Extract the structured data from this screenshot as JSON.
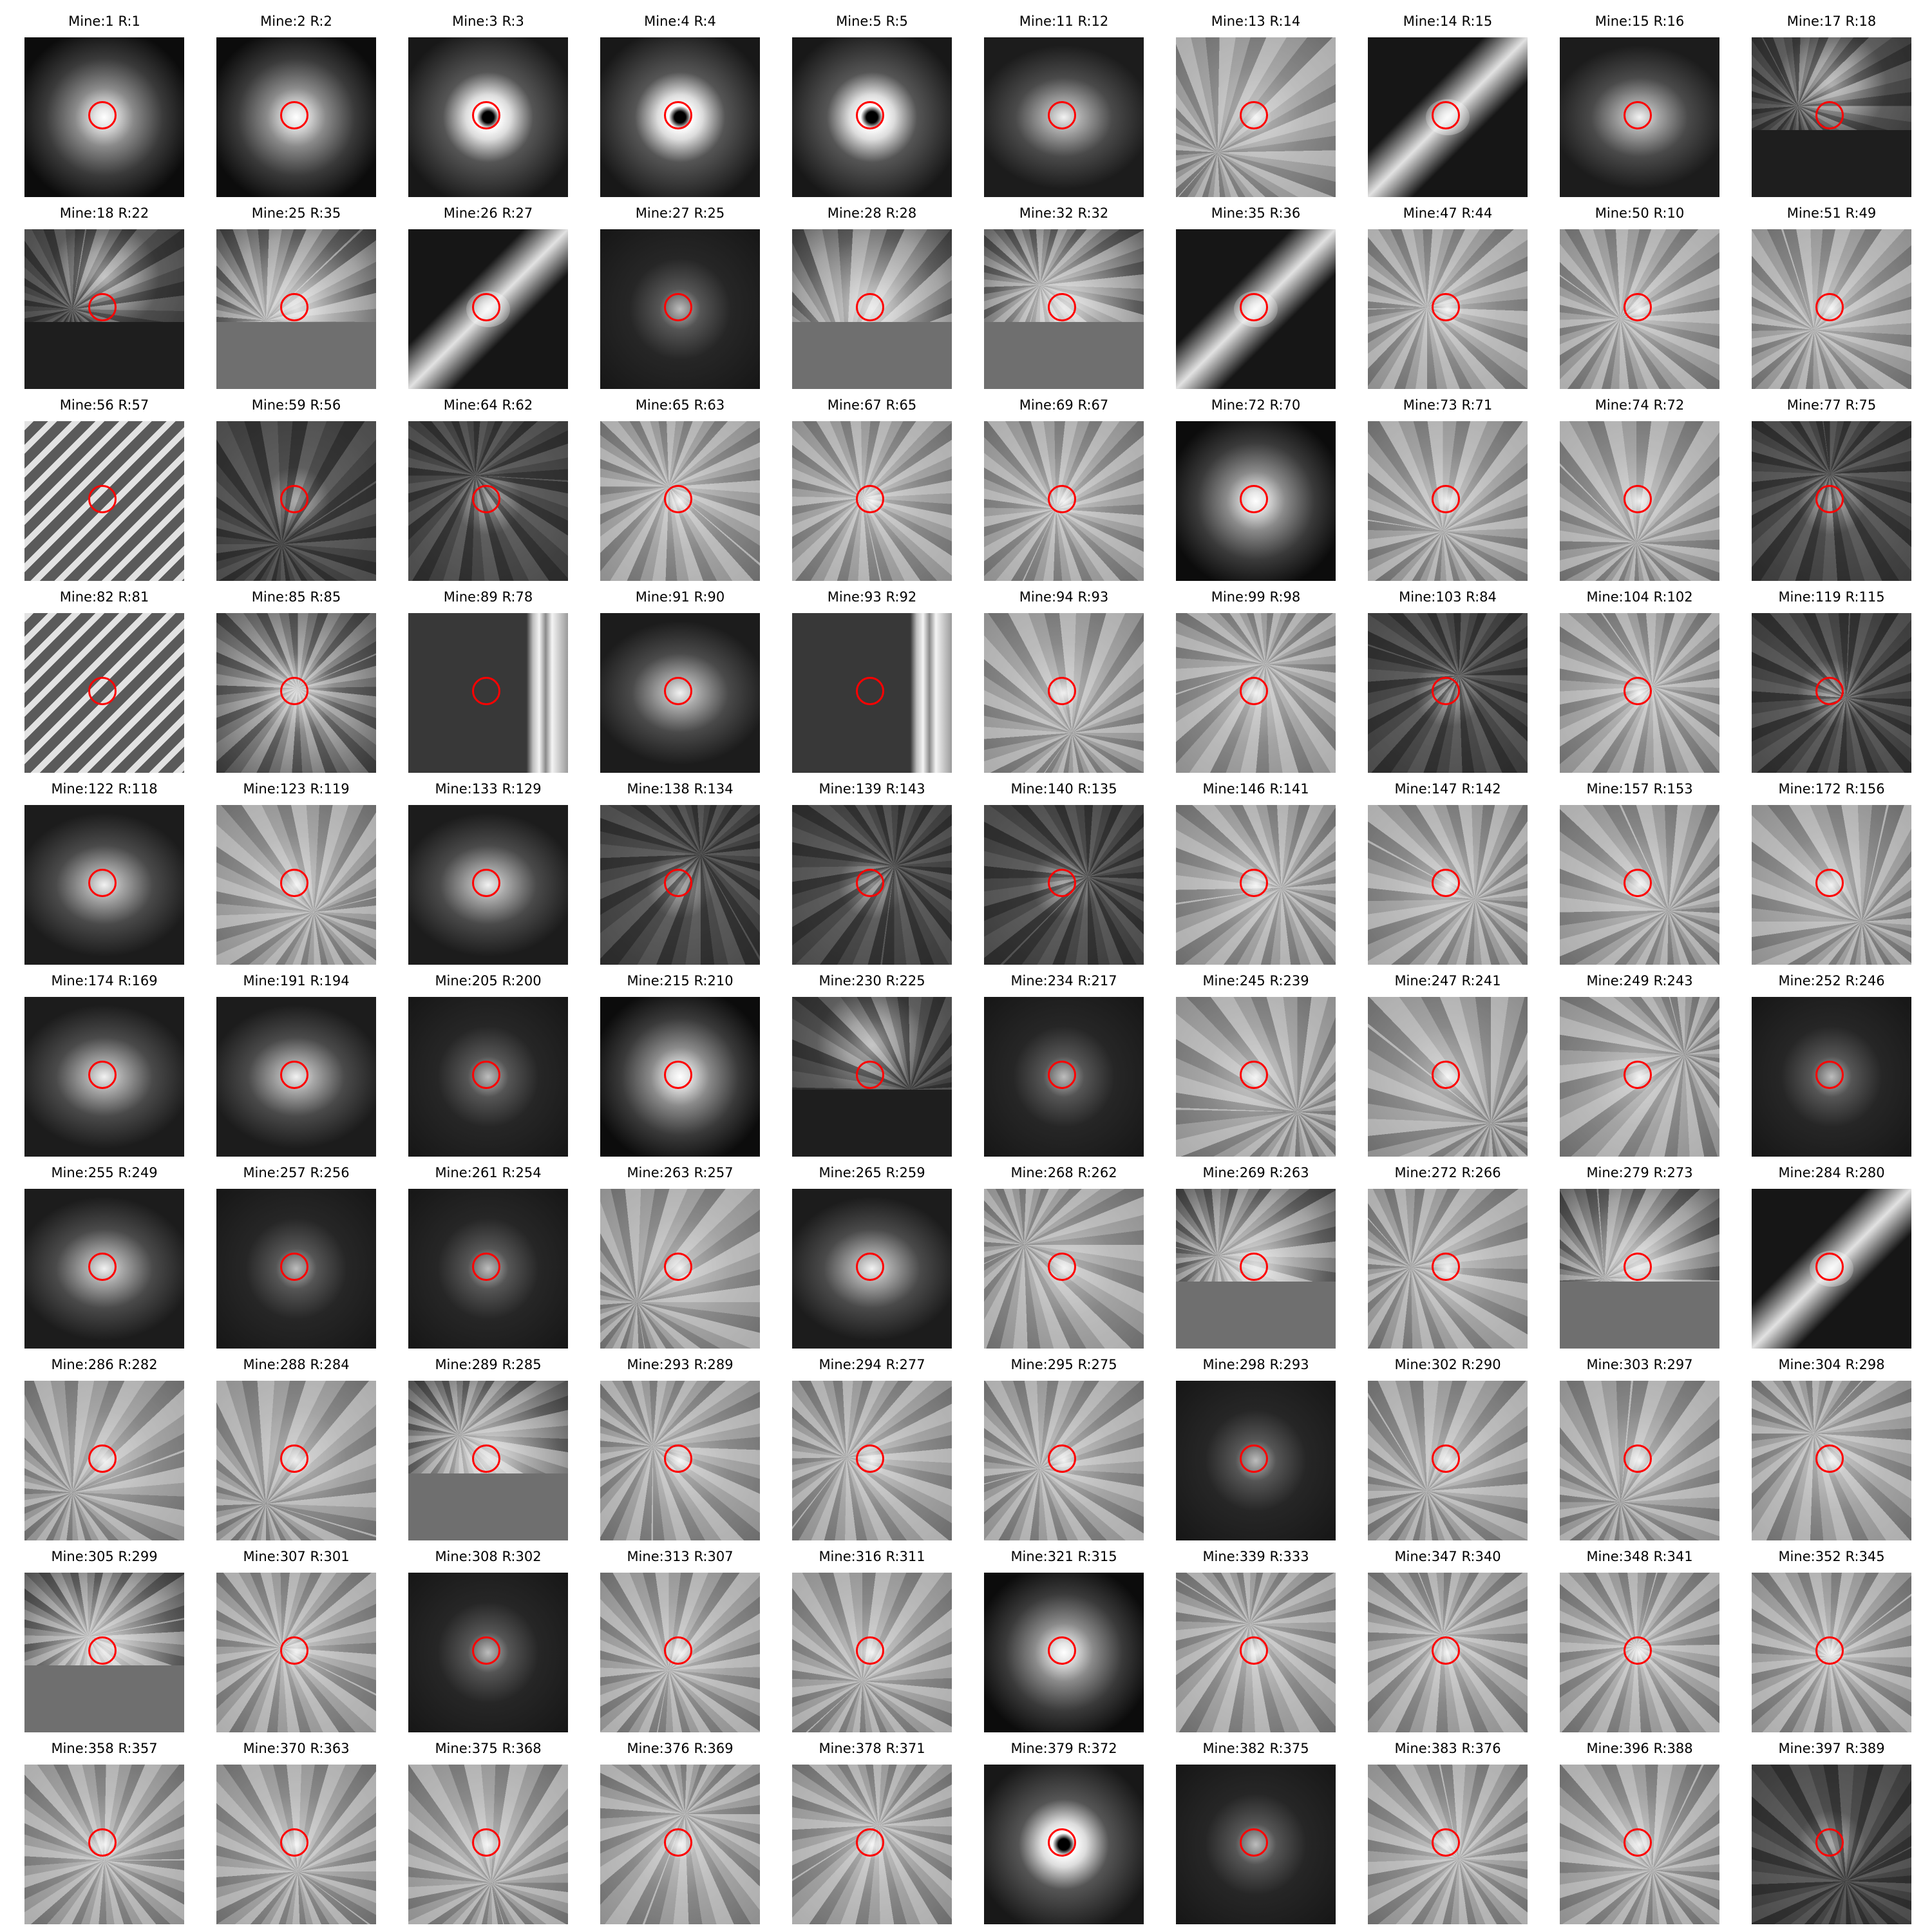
{
  "marker_color": "#ff0000",
  "background": "#ffffff",
  "grid": {
    "columns": 10,
    "rows": 10
  },
  "cells": [
    {
      "title": "Mine:1 R:1",
      "look": "galaxy-bright"
    },
    {
      "title": "Mine:2 R:2",
      "look": "galaxy-bright"
    },
    {
      "title": "Mine:3 R:3",
      "look": "star-spikes"
    },
    {
      "title": "Mine:4 R:4",
      "look": "star-spikes"
    },
    {
      "title": "Mine:5 R:5",
      "look": "star-spikes"
    },
    {
      "title": "Mine:11 R:12",
      "look": "galaxy"
    },
    {
      "title": "Mine:13 R:14",
      "look": "noise"
    },
    {
      "title": "Mine:14 R:15",
      "look": "edge-on"
    },
    {
      "title": "Mine:15 R:16",
      "look": "galaxy"
    },
    {
      "title": "Mine:17 R:18",
      "look": "masked-dark"
    },
    {
      "title": "Mine:18 R:22",
      "look": "masked-dark"
    },
    {
      "title": "Mine:25 R:35",
      "look": "masked-gray"
    },
    {
      "title": "Mine:26 R:27",
      "look": "edge-on"
    },
    {
      "title": "Mine:27 R:25",
      "look": "galaxy-dark"
    },
    {
      "title": "Mine:28 R:28",
      "look": "masked-gray"
    },
    {
      "title": "Mine:32 R:32",
      "look": "masked-gray"
    },
    {
      "title": "Mine:35 R:36",
      "look": "edge-on"
    },
    {
      "title": "Mine:47 R:44",
      "look": "noise"
    },
    {
      "title": "Mine:50 R:10",
      "look": "noise"
    },
    {
      "title": "Mine:51 R:49",
      "look": "noise"
    },
    {
      "title": "Mine:56 R:57",
      "look": "striped"
    },
    {
      "title": "Mine:59 R:56",
      "look": "noise-dark"
    },
    {
      "title": "Mine:64 R:62",
      "look": "noise-dark"
    },
    {
      "title": "Mine:65 R:63",
      "look": "noise"
    },
    {
      "title": "Mine:67 R:65",
      "look": "noise"
    },
    {
      "title": "Mine:69 R:67",
      "look": "noise"
    },
    {
      "title": "Mine:72 R:70",
      "look": "galaxy-bright"
    },
    {
      "title": "Mine:73 R:71",
      "look": "noise"
    },
    {
      "title": "Mine:74 R:72",
      "look": "noise"
    },
    {
      "title": "Mine:77 R:75",
      "look": "noise-dark"
    },
    {
      "title": "Mine:82 R:81",
      "look": "striped"
    },
    {
      "title": "Mine:85 R:85",
      "look": "masked-side"
    },
    {
      "title": "Mine:89 R:78",
      "look": "bar-right"
    },
    {
      "title": "Mine:91 R:90",
      "look": "galaxy"
    },
    {
      "title": "Mine:93 R:92",
      "look": "bar-right"
    },
    {
      "title": "Mine:94 R:93",
      "look": "noise"
    },
    {
      "title": "Mine:99 R:98",
      "look": "noise"
    },
    {
      "title": "Mine:103 R:84",
      "look": "noise-dark"
    },
    {
      "title": "Mine:104 R:102",
      "look": "noise"
    },
    {
      "title": "Mine:119 R:115",
      "look": "noise-dark"
    },
    {
      "title": "Mine:122 R:118",
      "look": "galaxy"
    },
    {
      "title": "Mine:123 R:119",
      "look": "noise"
    },
    {
      "title": "Mine:133 R:129",
      "look": "galaxy"
    },
    {
      "title": "Mine:138 R:134",
      "look": "noise-dark"
    },
    {
      "title": "Mine:139 R:143",
      "look": "noise-dark"
    },
    {
      "title": "Mine:140 R:135",
      "look": "noise-dark"
    },
    {
      "title": "Mine:146 R:141",
      "look": "noise"
    },
    {
      "title": "Mine:147 R:142",
      "look": "noise"
    },
    {
      "title": "Mine:157 R:153",
      "look": "noise"
    },
    {
      "title": "Mine:172 R:156",
      "look": "noise"
    },
    {
      "title": "Mine:174 R:169",
      "look": "galaxy"
    },
    {
      "title": "Mine:191 R:194",
      "look": "galaxy"
    },
    {
      "title": "Mine:205 R:200",
      "look": "galaxy-dark"
    },
    {
      "title": "Mine:215 R:210",
      "look": "galaxy-bright"
    },
    {
      "title": "Mine:230 R:225",
      "look": "masked-dark"
    },
    {
      "title": "Mine:234 R:217",
      "look": "galaxy-dark"
    },
    {
      "title": "Mine:245 R:239",
      "look": "noise"
    },
    {
      "title": "Mine:247 R:241",
      "look": "noise"
    },
    {
      "title": "Mine:249 R:243",
      "look": "noise"
    },
    {
      "title": "Mine:252 R:246",
      "look": "galaxy-dark"
    },
    {
      "title": "Mine:255 R:249",
      "look": "galaxy"
    },
    {
      "title": "Mine:257 R:256",
      "look": "galaxy-dark"
    },
    {
      "title": "Mine:261 R:254",
      "look": "galaxy-dark"
    },
    {
      "title": "Mine:263 R:257",
      "look": "noise"
    },
    {
      "title": "Mine:265 R:259",
      "look": "galaxy"
    },
    {
      "title": "Mine:268 R:262",
      "look": "noise"
    },
    {
      "title": "Mine:269 R:263",
      "look": "masked-gray"
    },
    {
      "title": "Mine:272 R:266",
      "look": "noise"
    },
    {
      "title": "Mine:279 R:273",
      "look": "masked-gray"
    },
    {
      "title": "Mine:284 R:280",
      "look": "edge-on"
    },
    {
      "title": "Mine:286 R:282",
      "look": "noise"
    },
    {
      "title": "Mine:288 R:284",
      "look": "noise"
    },
    {
      "title": "Mine:289 R:285",
      "look": "masked-gray"
    },
    {
      "title": "Mine:293 R:289",
      "look": "noise"
    },
    {
      "title": "Mine:294 R:277",
      "look": "noise"
    },
    {
      "title": "Mine:295 R:275",
      "look": "noise"
    },
    {
      "title": "Mine:298 R:293",
      "look": "galaxy-dark"
    },
    {
      "title": "Mine:302 R:290",
      "look": "noise"
    },
    {
      "title": "Mine:303 R:297",
      "look": "noise"
    },
    {
      "title": "Mine:304 R:298",
      "look": "noise"
    },
    {
      "title": "Mine:305 R:299",
      "look": "masked-gray"
    },
    {
      "title": "Mine:307 R:301",
      "look": "noise"
    },
    {
      "title": "Mine:308 R:302",
      "look": "galaxy-dark"
    },
    {
      "title": "Mine:313 R:307",
      "look": "noise"
    },
    {
      "title": "Mine:316 R:311",
      "look": "noise"
    },
    {
      "title": "Mine:321 R:315",
      "look": "galaxy-bright"
    },
    {
      "title": "Mine:339 R:333",
      "look": "noise"
    },
    {
      "title": "Mine:347 R:340",
      "look": "noise"
    },
    {
      "title": "Mine:348 R:341",
      "look": "noise"
    },
    {
      "title": "Mine:352 R:345",
      "look": "noise"
    },
    {
      "title": "Mine:358 R:357",
      "look": "noise"
    },
    {
      "title": "Mine:370 R:363",
      "look": "noise"
    },
    {
      "title": "Mine:375 R:368",
      "look": "noise"
    },
    {
      "title": "Mine:376 R:369",
      "look": "noise"
    },
    {
      "title": "Mine:378 R:371",
      "look": "noise"
    },
    {
      "title": "Mine:379 R:372",
      "look": "star-spikes"
    },
    {
      "title": "Mine:382 R:375",
      "look": "galaxy-dark"
    },
    {
      "title": "Mine:383 R:376",
      "look": "noise"
    },
    {
      "title": "Mine:396 R:388",
      "look": "noise"
    },
    {
      "title": "Mine:397 R:389",
      "look": "noise-dark"
    }
  ]
}
